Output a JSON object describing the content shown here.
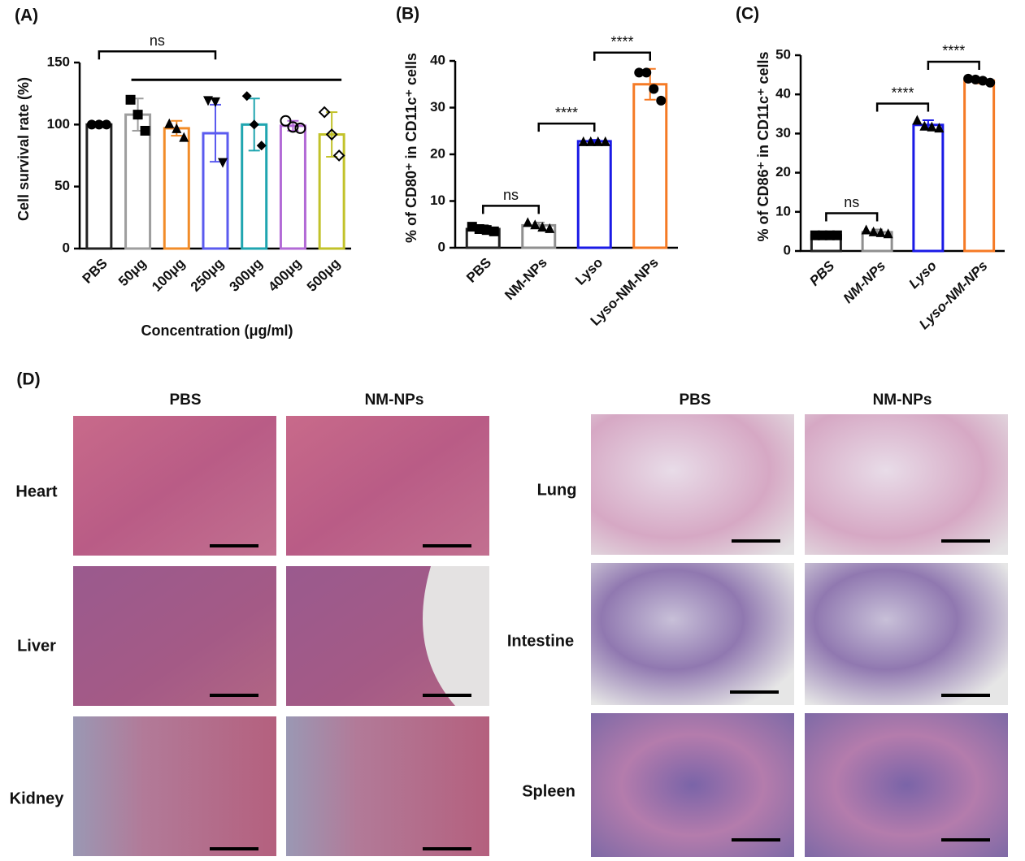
{
  "chart_data": [
    {
      "type": "bar",
      "panel": "(A)",
      "y_label": "Cell survival rate (%)",
      "x_label": "Concentration (μg/ml)",
      "categories": [
        "PBS",
        "50μg",
        "100μg",
        "250μg",
        "300μg",
        "400μg",
        "500μg"
      ],
      "values": [
        100,
        108,
        97,
        93,
        100,
        99,
        92
      ],
      "errors": [
        0,
        13,
        6,
        23,
        21,
        4,
        18
      ],
      "points": [
        [
          100,
          100,
          100
        ],
        [
          120,
          108,
          95
        ],
        [
          101,
          97,
          90
        ],
        [
          119,
          118,
          69
        ],
        [
          123,
          100,
          83
        ],
        [
          103,
          98,
          97
        ],
        [
          110,
          92,
          75
        ]
      ],
      "colors": [
        "#222222",
        "#9e9e9e",
        "#f28c28",
        "#5b5bef",
        "#1fa5b0",
        "#b26ad6",
        "#c2c22a"
      ],
      "markers": [
        "circle",
        "square",
        "triangle",
        "triangle-down",
        "diamond",
        "circle-open",
        "diamond-open"
      ],
      "ylim": [
        0,
        150
      ],
      "yticks": [
        0,
        50,
        100,
        150
      ],
      "brackets": [
        {
          "between": [
            "50μg",
            "500μg"
          ]
        },
        {
          "between": [
            "PBS",
            "250μg"
          ],
          "label": "ns"
        }
      ]
    },
    {
      "type": "bar",
      "panel": "(B)",
      "y_label": "% of CD80⁺ in CD11c⁺ cells",
      "categories": [
        "PBS",
        "NM-NPs",
        "Lyso",
        "Lyso-NM-NPs"
      ],
      "values": [
        4,
        4.8,
        22.8,
        35
      ],
      "errors": [
        0.8,
        0.6,
        0.3,
        3.3
      ],
      "points": [
        [
          4.5,
          4,
          3.8,
          3.5
        ],
        [
          5.5,
          5,
          4.5,
          4.2
        ],
        [
          22.8,
          22.8,
          22.8,
          22.8
        ],
        [
          37.5,
          37.5,
          34,
          31.5
        ]
      ],
      "colors": [
        "#222222",
        "#8f8f8f",
        "#1a1ae6",
        "#f57a25"
      ],
      "markers": [
        "square",
        "triangle",
        "triangle",
        "circle"
      ],
      "ylim": [
        0,
        40
      ],
      "yticks": [
        0,
        10,
        20,
        30,
        40
      ],
      "brackets": [
        {
          "between": [
            "PBS",
            "NM-NPs"
          ],
          "label": "ns"
        },
        {
          "between": [
            "NM-NPs",
            "Lyso"
          ],
          "label": "****"
        },
        {
          "between": [
            "Lyso",
            "Lyso-NM-NPs"
          ],
          "label": "****"
        }
      ]
    },
    {
      "type": "bar",
      "panel": "(C)",
      "y_label": "% of CD86⁺ in CD11c⁺ cells",
      "italic": true,
      "categories": [
        "PBS",
        "NM-NPs",
        "Lyso",
        "Lyso-NM-NPs"
      ],
      "values": [
        4,
        4.8,
        32.2,
        43.5
      ],
      "errors": [
        0.4,
        0.7,
        1.2,
        0.7
      ],
      "points": [
        [
          4,
          4,
          4,
          4
        ],
        [
          5.5,
          5,
          4.8,
          4.5
        ],
        [
          33.5,
          32,
          31.8,
          31.5
        ],
        [
          44,
          43.8,
          43.5,
          43
        ]
      ],
      "colors": [
        "#222222",
        "#8f8f8f",
        "#1a1ae6",
        "#f57a25"
      ],
      "markers": [
        "square",
        "triangle",
        "triangle",
        "circle"
      ],
      "ylim": [
        0,
        50
      ],
      "yticks": [
        0,
        10,
        20,
        30,
        40,
        50
      ],
      "brackets": [
        {
          "between": [
            "PBS",
            "NM-NPs"
          ],
          "label": "ns"
        },
        {
          "between": [
            "NM-NPs",
            "Lyso"
          ],
          "label": "****"
        },
        {
          "between": [
            "Lyso",
            "Lyso-NM-NPs"
          ],
          "label": "****"
        }
      ]
    }
  ],
  "histology": {
    "panel": "(D)",
    "left": {
      "columns": [
        "PBS",
        "NM-NPs"
      ],
      "rows": [
        "Heart",
        "Liver",
        "Kidney"
      ]
    },
    "right": {
      "columns": [
        "PBS",
        "NM-NPs"
      ],
      "rows": [
        "Lung",
        "Intestine",
        "Spleen"
      ]
    }
  }
}
